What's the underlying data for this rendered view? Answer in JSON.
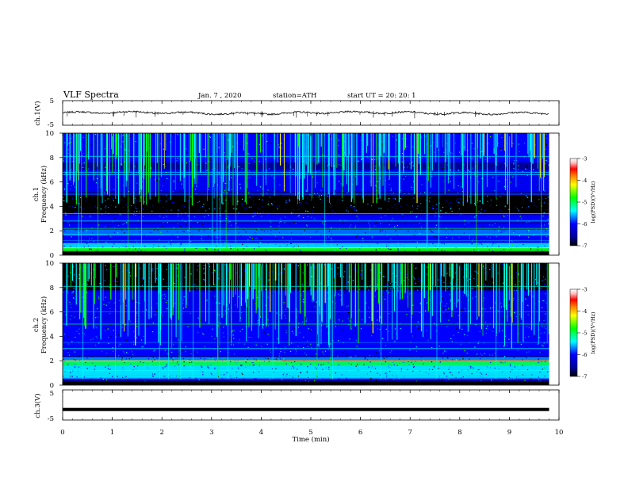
{
  "header": {
    "title": "VLF  Spectra",
    "date": "Jan.  7  , 2020",
    "station": "station=ATH",
    "start_ut": "start  UT  =    20: 20: 1"
  },
  "colormap": {
    "black": "#000000",
    "dark_blue": "#00009a",
    "blue": "#0000ff",
    "light_blue": "#0080ff",
    "cyan": "#00ffff",
    "green": "#00ff00",
    "yellow": "#ffff00",
    "orange": "#ff8000",
    "red": "#ff0000",
    "pink": "#ffc0c0",
    "white": "#ffffff"
  },
  "chart_data": [
    {
      "type": "line",
      "name": "ch1-waveform",
      "ylabel": "ch.1(V)",
      "ylim": [
        -5,
        5
      ],
      "yticks": [
        "5",
        "-5"
      ],
      "xlim": [
        0,
        10
      ],
      "baseline_v": 0
    },
    {
      "type": "heatmap",
      "name": "ch1-spectrogram",
      "ylabel": "ch.1\nFrequency  (kHz)",
      "xlim": [
        0,
        10
      ],
      "ylim": [
        0,
        10
      ],
      "yticks": [
        "0",
        "2",
        "4",
        "6",
        "8",
        "10"
      ],
      "colorbar": {
        "label": "log(PSD)(V²/Hz)",
        "range": [
          -7,
          -3
        ],
        "ticks": [
          "-3",
          "-4",
          "-5",
          "-6",
          "-7"
        ]
      }
    },
    {
      "type": "heatmap",
      "name": "ch2-spectrogram",
      "ylabel": "ch.2\nFrequency  (kHz)",
      "xlim": [
        0,
        10
      ],
      "ylim": [
        0,
        10
      ],
      "yticks": [
        "0",
        "2",
        "4",
        "6",
        "8",
        "10"
      ],
      "colorbar": {
        "label": "log(PSD)(V²/Hz)",
        "range": [
          -7,
          -3
        ],
        "ticks": [
          "-3",
          "-4",
          "-5",
          "-6",
          "-7"
        ]
      }
    },
    {
      "type": "line",
      "name": "ch3-waveform",
      "ylabel": "ch.3(V)",
      "ylim": [
        -5,
        5
      ],
      "yticks": [
        "5",
        "-5"
      ],
      "xlim": [
        0,
        10
      ],
      "baseline_v": -1.5
    }
  ],
  "xaxis": {
    "label": "Time  (min)",
    "ticks": [
      "0",
      "1",
      "2",
      "3",
      "4",
      "5",
      "6",
      "7",
      "8",
      "9",
      "10"
    ],
    "data_end": 9.8
  }
}
